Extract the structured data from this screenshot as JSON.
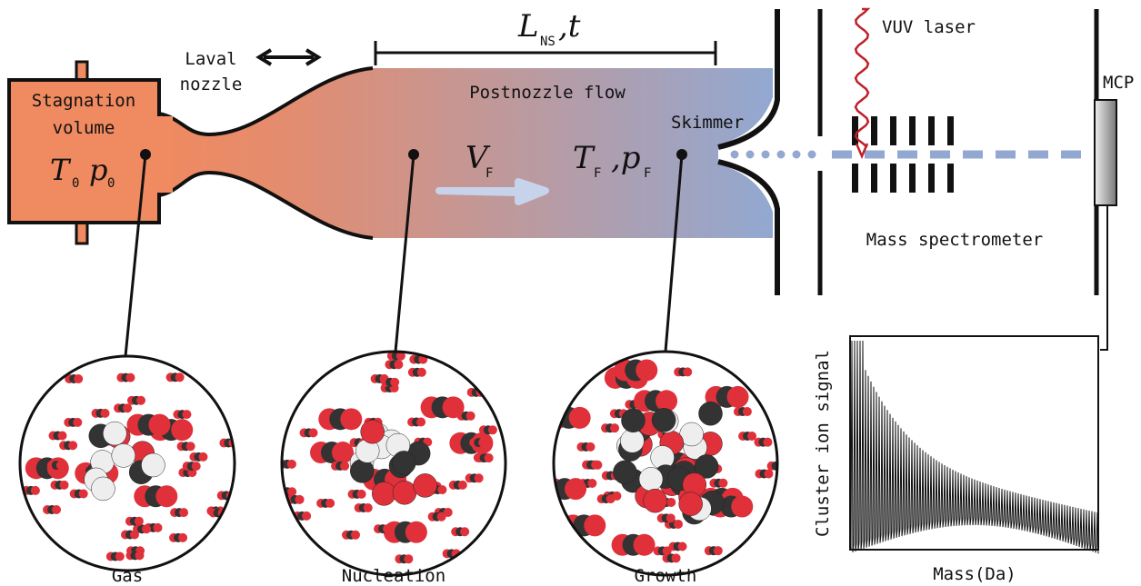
{
  "nozzle": {
    "laval_nozzle": [
      "Laval",
      "nozzle"
    ],
    "stagnation_volume": [
      "Stagnation",
      "volume"
    ],
    "stagnation_T": "T",
    "stagnation_T_sub": "0",
    "stagnation_p": "p",
    "stagnation_p_sub": "0"
  },
  "flow": {
    "length_L": "L",
    "length_L_sub": "NS",
    "length_t": ",t",
    "postnozzle_flow": "Postnozzle flow",
    "velocity_V": "V",
    "velocity_V_sub": "F",
    "temp_T": "T",
    "temp_T_sub": "F",
    "pressure_p": ",p",
    "pressure_p_sub": "F",
    "skimmer": "Skimmer"
  },
  "detector": {
    "vuv_laser": "VUV laser",
    "mcp": "MCP",
    "mass_spectrometer": "Mass spectrometer",
    "y_axis_label": "Cluster ion signal",
    "x_axis_label": "Mass(Da)"
  },
  "stages": [
    "Gas",
    "Nucleation",
    "Growth"
  ]
}
